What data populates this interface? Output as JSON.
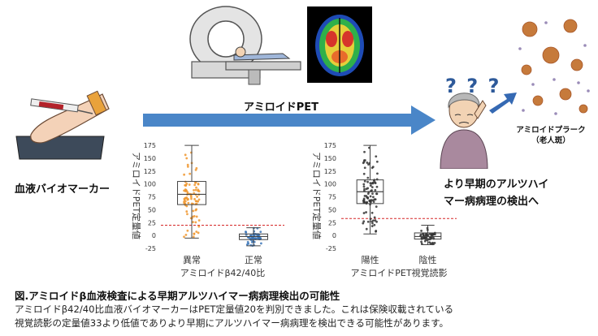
{
  "arrow_label": "アミロイドPET",
  "biomarker_label": "血液バイオマーカー",
  "result_label_line1": "より早期のアルツハイ",
  "result_label_line2": "マー病病理の検出へ",
  "plaque_label_line1": "アミロイドプラーク",
  "plaque_label_line2": "（老人斑）",
  "question_marks": "? ? ?",
  "caption_title": "図.アミロイドβ血液検査による早期アルツハイマー病病理検出の可能性",
  "caption_line1": "アミロイドβ42/40比血液バイオマーカーはPET定量値20を判別できました。これは保険収載されている",
  "caption_line2": "視覚読影の定量値33より低値でありより早期にアルツハイマー病病理を検出できる可能性があります。",
  "colors": {
    "arrow": "#4a86c8",
    "orange": "#f0962e",
    "blue": "#3b76b8",
    "dark": "#333333",
    "threshold": "#d62728"
  },
  "chart_data": [
    {
      "type": "box",
      "ylabel": "アミロイドPET定量値",
      "xlabel": "アミロイドβ42/40比",
      "categories": [
        "異常",
        "正常"
      ],
      "ylim": [
        -25,
        180
      ],
      "yticks": [
        "175",
        "150",
        "125",
        "100",
        "75",
        "50",
        "25",
        "0",
        "-25"
      ],
      "threshold": 20,
      "boxes": [
        {
          "name": "異常",
          "whisker_low": -5,
          "q1": 60,
          "median": 80,
          "q3": 105,
          "whisker_high": 175,
          "color": "#f0962e"
        },
        {
          "name": "正常",
          "whisker_low": -20,
          "q1": -8,
          "median": -2,
          "q3": 3,
          "whisker_high": 15,
          "color": "#3b76b8"
        }
      ]
    },
    {
      "type": "box",
      "ylabel": "アミロイドPET定量値",
      "xlabel": "アミロイドPET視覚読影",
      "categories": [
        "陽性",
        "陰性"
      ],
      "ylim": [
        -25,
        180
      ],
      "yticks": [
        "175",
        "150",
        "125",
        "100",
        "75",
        "50",
        "25",
        "0",
        "-25"
      ],
      "threshold": 33,
      "boxes": [
        {
          "name": "陽性",
          "whisker_low": 3,
          "q1": 62,
          "median": 85,
          "q3": 108,
          "whisker_high": 175,
          "color": "#333333"
        },
        {
          "name": "陰性",
          "whisker_low": -18,
          "q1": -7,
          "median": -2,
          "q3": 5,
          "whisker_high": 20,
          "color": "#333333"
        }
      ]
    }
  ]
}
